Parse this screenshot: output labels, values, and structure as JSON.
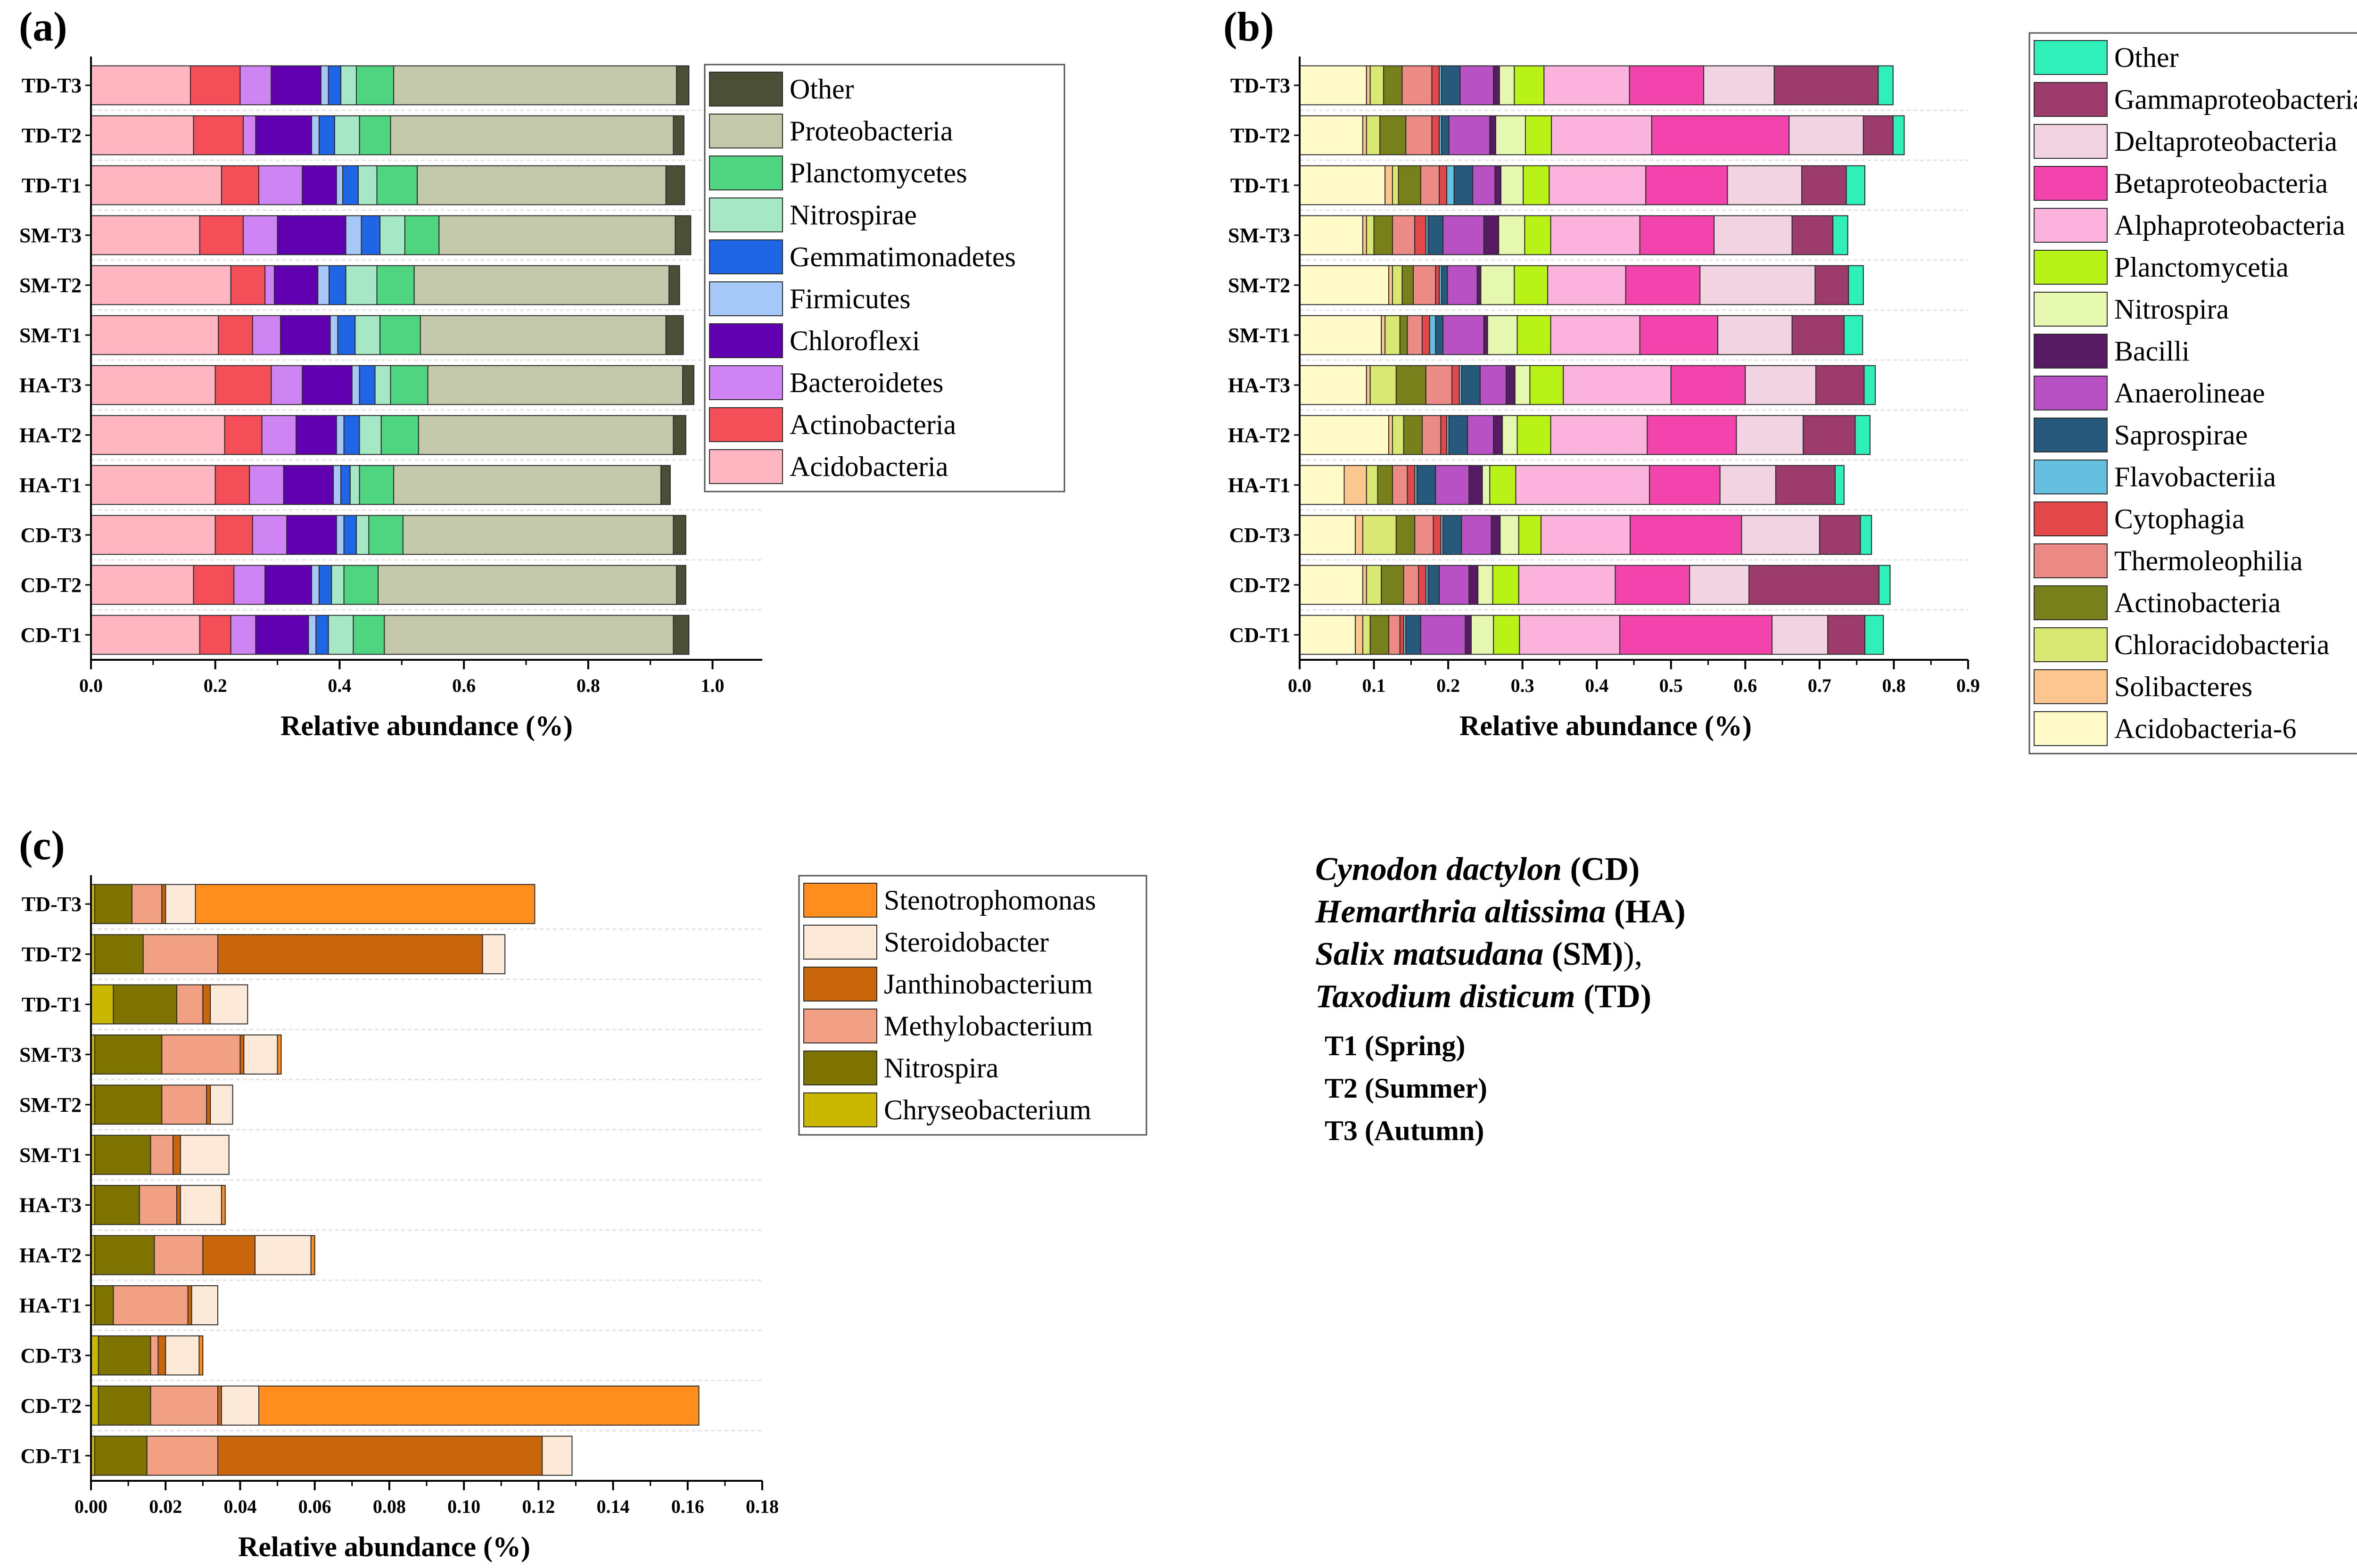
{
  "samples": [
    "TD-T3",
    "TD-T2",
    "TD-T1",
    "SM-T3",
    "SM-T2",
    "SM-T1",
    "HA-T3",
    "HA-T2",
    "HA-T1",
    "CD-T3",
    "CD-T2",
    "CD-T1"
  ],
  "chart_data": [
    {
      "label": "(a)",
      "type": "bar",
      "orientation": "horizontal",
      "stacked": true,
      "xlabel": "Relative abundance (%)",
      "xlim": [
        0,
        1.08
      ],
      "ticks": [
        0.0,
        0.2,
        0.4,
        0.6,
        0.8,
        1.0
      ],
      "tick_labels": [
        "0.0",
        "0.2",
        "0.4",
        "0.6",
        "0.8",
        "1.0"
      ],
      "legend_position": "right",
      "legend_order": [
        "Other",
        "Proteobacteria",
        "Planctomycetes",
        "Nitrospirae",
        "Gemmatimonadetes",
        "Firmicutes",
        "Chloroflexi",
        "Bacteroidetes",
        "Actinobacteria",
        "Acidobacteria"
      ],
      "series": [
        {
          "name": "Acidobacteria",
          "color": "#FFB6C1",
          "values": [
            0.16,
            0.165,
            0.21,
            0.175,
            0.225,
            0.205,
            0.2,
            0.215,
            0.2,
            0.2,
            0.165,
            0.175
          ]
        },
        {
          "name": "Actinobacteria",
          "color": "#F44E58",
          "values": [
            0.08,
            0.08,
            0.06,
            0.07,
            0.055,
            0.055,
            0.09,
            0.06,
            0.055,
            0.06,
            0.065,
            0.05
          ]
        },
        {
          "name": "Bacteroidetes",
          "color": "#CF84F4",
          "values": [
            0.05,
            0.02,
            0.07,
            0.055,
            0.015,
            0.045,
            0.05,
            0.055,
            0.055,
            0.055,
            0.05,
            0.04
          ]
        },
        {
          "name": "Chloroflexi",
          "color": "#6100B0",
          "values": [
            0.08,
            0.09,
            0.055,
            0.11,
            0.07,
            0.08,
            0.08,
            0.065,
            0.08,
            0.08,
            0.075,
            0.085
          ]
        },
        {
          "name": "Firmicutes",
          "color": "#A6C8F8",
          "values": [
            0.012,
            0.012,
            0.01,
            0.025,
            0.018,
            0.012,
            0.012,
            0.012,
            0.012,
            0.012,
            0.012,
            0.012
          ]
        },
        {
          "name": "Gemmatimonadetes",
          "color": "#1F66E6",
          "values": [
            0.02,
            0.025,
            0.025,
            0.03,
            0.027,
            0.028,
            0.025,
            0.025,
            0.015,
            0.02,
            0.02,
            0.02
          ]
        },
        {
          "name": "Nitrospirae",
          "color": "#A6E8C6",
          "values": [
            0.025,
            0.04,
            0.03,
            0.04,
            0.05,
            0.04,
            0.025,
            0.035,
            0.015,
            0.02,
            0.02,
            0.04
          ]
        },
        {
          "name": "Planctomycetes",
          "color": "#4FD480",
          "values": [
            0.06,
            0.05,
            0.065,
            0.055,
            0.06,
            0.065,
            0.06,
            0.06,
            0.055,
            0.055,
            0.055,
            0.05
          ]
        },
        {
          "name": "Proteobacteria",
          "color": "#C5C9AC",
          "values": [
            0.455,
            0.455,
            0.4,
            0.38,
            0.41,
            0.395,
            0.41,
            0.41,
            0.43,
            0.435,
            0.48,
            0.465
          ]
        },
        {
          "name": "Other",
          "color": "#4A4F36",
          "values": [
            0.02,
            0.017,
            0.03,
            0.025,
            0.017,
            0.028,
            0.018,
            0.02,
            0.015,
            0.02,
            0.015,
            0.025
          ]
        }
      ]
    },
    {
      "label": "(b)",
      "type": "bar",
      "orientation": "horizontal",
      "stacked": true,
      "xlabel": "Relative abundance (%)",
      "xlim": [
        0,
        0.9
      ],
      "ticks": [
        0.0,
        0.1,
        0.2,
        0.3,
        0.4,
        0.5,
        0.6,
        0.7,
        0.8,
        0.9
      ],
      "tick_labels": [
        "0.0",
        "0.1",
        "0.2",
        "0.3",
        "0.4",
        "0.5",
        "0.6",
        "0.7",
        "0.8",
        "0.9"
      ],
      "legend_position": "right",
      "legend_order": [
        "Other",
        "Gammaproteobacteria",
        "Deltaproteobacteria",
        "Betaproteobacteria",
        "Alphaproteobacteria",
        "Planctomycetia",
        "Nitrospira",
        "Bacilli",
        "Anaerolineae",
        "Saprospirae",
        "Flavobacteriia",
        "Cytophagia",
        "Thermoleophilia",
        "Actinobacteria",
        "Chloracidobacteria",
        "Solibacteres",
        "Acidobacteria-6"
      ],
      "series": [
        {
          "name": "Acidobacteria-6",
          "color": "#FFFAC8",
          "values": [
            0.09,
            0.085,
            0.115,
            0.085,
            0.12,
            0.11,
            0.09,
            0.12,
            0.06,
            0.075,
            0.085,
            0.075
          ]
        },
        {
          "name": "Solibacteres",
          "color": "#FCC690",
          "values": [
            0.005,
            0.005,
            0.01,
            0.005,
            0.005,
            0.005,
            0.005,
            0.005,
            0.03,
            0.01,
            0.005,
            0.01
          ]
        },
        {
          "name": "Chloracidobacteria",
          "color": "#D8E872",
          "values": [
            0.018,
            0.018,
            0.008,
            0.01,
            0.013,
            0.02,
            0.035,
            0.015,
            0.015,
            0.045,
            0.02,
            0.01
          ]
        },
        {
          "name": "Actinobacteria",
          "color": "#77801A",
          "values": [
            0.025,
            0.035,
            0.03,
            0.025,
            0.015,
            0.01,
            0.04,
            0.025,
            0.02,
            0.025,
            0.03,
            0.025
          ]
        },
        {
          "name": "Thermoleophilia",
          "color": "#EC8A85",
          "values": [
            0.04,
            0.035,
            0.025,
            0.03,
            0.03,
            0.02,
            0.035,
            0.025,
            0.02,
            0.025,
            0.02,
            0.015
          ]
        },
        {
          "name": "Cytophagia",
          "color": "#E2474A",
          "values": [
            0.01,
            0.01,
            0.01,
            0.015,
            0.005,
            0.01,
            0.01,
            0.008,
            0.01,
            0.01,
            0.01,
            0.005
          ]
        },
        {
          "name": "Flavobacteriia",
          "color": "#64C0DE",
          "values": [
            0.003,
            0.003,
            0.01,
            0.003,
            0.003,
            0.008,
            0.003,
            0.003,
            0.003,
            0.003,
            0.003,
            0.003
          ]
        },
        {
          "name": "Saprospirae",
          "color": "#27597D",
          "values": [
            0.025,
            0.01,
            0.025,
            0.02,
            0.008,
            0.01,
            0.025,
            0.025,
            0.025,
            0.025,
            0.015,
            0.02
          ]
        },
        {
          "name": "Anaerolineae",
          "color": "#B852C4",
          "values": [
            0.045,
            0.055,
            0.03,
            0.055,
            0.04,
            0.055,
            0.035,
            0.035,
            0.045,
            0.04,
            0.04,
            0.06
          ]
        },
        {
          "name": "Bacilli",
          "color": "#561B62",
          "values": [
            0.008,
            0.008,
            0.008,
            0.02,
            0.005,
            0.005,
            0.012,
            0.012,
            0.018,
            0.012,
            0.012,
            0.008
          ]
        },
        {
          "name": "Nitrospira",
          "color": "#E6F8B0",
          "values": [
            0.02,
            0.04,
            0.03,
            0.035,
            0.045,
            0.04,
            0.02,
            0.02,
            0.01,
            0.025,
            0.02,
            0.03
          ]
        },
        {
          "name": "Planctomycetia",
          "color": "#B9F217",
          "values": [
            0.04,
            0.035,
            0.035,
            0.035,
            0.045,
            0.045,
            0.045,
            0.045,
            0.035,
            0.03,
            0.035,
            0.035
          ]
        },
        {
          "name": "Alphaproteobacteria",
          "color": "#FBB3DE",
          "values": [
            0.115,
            0.135,
            0.13,
            0.12,
            0.105,
            0.12,
            0.145,
            0.13,
            0.18,
            0.12,
            0.13,
            0.135
          ]
        },
        {
          "name": "Betaproteobacteria",
          "color": "#F344AE",
          "values": [
            0.1,
            0.185,
            0.11,
            0.1,
            0.1,
            0.105,
            0.1,
            0.12,
            0.095,
            0.15,
            0.1,
            0.205
          ]
        },
        {
          "name": "Deltaproteobacteria",
          "color": "#F2D3E2",
          "values": [
            0.095,
            0.1,
            0.1,
            0.105,
            0.155,
            0.1,
            0.095,
            0.09,
            0.075,
            0.105,
            0.08,
            0.075
          ]
        },
        {
          "name": "Gammaproteobacteria",
          "color": "#9C3B6C",
          "values": [
            0.14,
            0.04,
            0.06,
            0.055,
            0.045,
            0.07,
            0.065,
            0.07,
            0.08,
            0.055,
            0.175,
            0.05
          ]
        },
        {
          "name": "Other",
          "color": "#2EF0B8",
          "values": [
            0.02,
            0.015,
            0.025,
            0.02,
            0.02,
            0.025,
            0.015,
            0.02,
            0.012,
            0.015,
            0.015,
            0.025
          ]
        }
      ]
    },
    {
      "label": "(c)",
      "type": "bar",
      "orientation": "horizontal",
      "stacked": true,
      "xlabel": "Relative abundance (%)",
      "xlim": [
        0,
        0.18
      ],
      "ticks": [
        0.0,
        0.02,
        0.04,
        0.06,
        0.08,
        0.1,
        0.12,
        0.14,
        0.16,
        0.18
      ],
      "tick_labels": [
        "0.00",
        "0.02",
        "0.04",
        "0.06",
        "0.08",
        "0.10",
        "0.12",
        "0.14",
        "0.16",
        "0.18"
      ],
      "legend_position": "right",
      "legend_order": [
        "Stenotrophomonas",
        "Steroidobacter",
        "Janthinobacterium",
        "Methylobacterium",
        "Nitrospira",
        "Chryseobacterium"
      ],
      "series": [
        {
          "name": "Chryseobacterium",
          "color": "#C9B700",
          "values": [
            0.001,
            0.001,
            0.006,
            0.001,
            0.001,
            0.001,
            0.001,
            0.001,
            0.001,
            0.002,
            0.002,
            0.001
          ]
        },
        {
          "name": "Nitrospira",
          "color": "#7F7300",
          "values": [
            0.01,
            0.013,
            0.017,
            0.018,
            0.018,
            0.015,
            0.012,
            0.016,
            0.005,
            0.014,
            0.014,
            0.014
          ]
        },
        {
          "name": "Methylobacterium",
          "color": "#F2A083",
          "values": [
            0.008,
            0.02,
            0.007,
            0.021,
            0.012,
            0.006,
            0.01,
            0.013,
            0.02,
            0.002,
            0.018,
            0.019
          ]
        },
        {
          "name": "Janthinobacterium",
          "color": "#C9650B",
          "values": [
            0.001,
            0.071,
            0.002,
            0.001,
            0.001,
            0.002,
            0.001,
            0.014,
            0.001,
            0.002,
            0.001,
            0.087
          ]
        },
        {
          "name": "Steroidobacter",
          "color": "#FDE9D7",
          "values": [
            0.008,
            0.006,
            0.01,
            0.009,
            0.006,
            0.013,
            0.011,
            0.015,
            0.007,
            0.009,
            0.01,
            0.008
          ]
        },
        {
          "name": "Stenotrophomonas",
          "color": "#FF8E1E",
          "values": [
            0.091,
            0.0,
            0.0,
            0.001,
            0.0,
            0.0,
            0.001,
            0.001,
            0.0,
            0.001,
            0.118,
            0.0
          ]
        }
      ]
    }
  ],
  "species": [
    {
      "latin": "Cynodon dactylon",
      "abbr": "(CD)",
      "tail": ""
    },
    {
      "latin": "Hemarthria altissima",
      "abbr": "(HA)",
      "tail": ""
    },
    {
      "latin": "Salix matsudana",
      "abbr": "(SM)",
      "tail": "),"
    },
    {
      "latin": "Taxodium disticum",
      "abbr": "(TD)",
      "tail": ""
    }
  ],
  "periods": [
    "T1 (Spring)",
    "T2 (Summer)",
    "T3 (Autumn)"
  ]
}
